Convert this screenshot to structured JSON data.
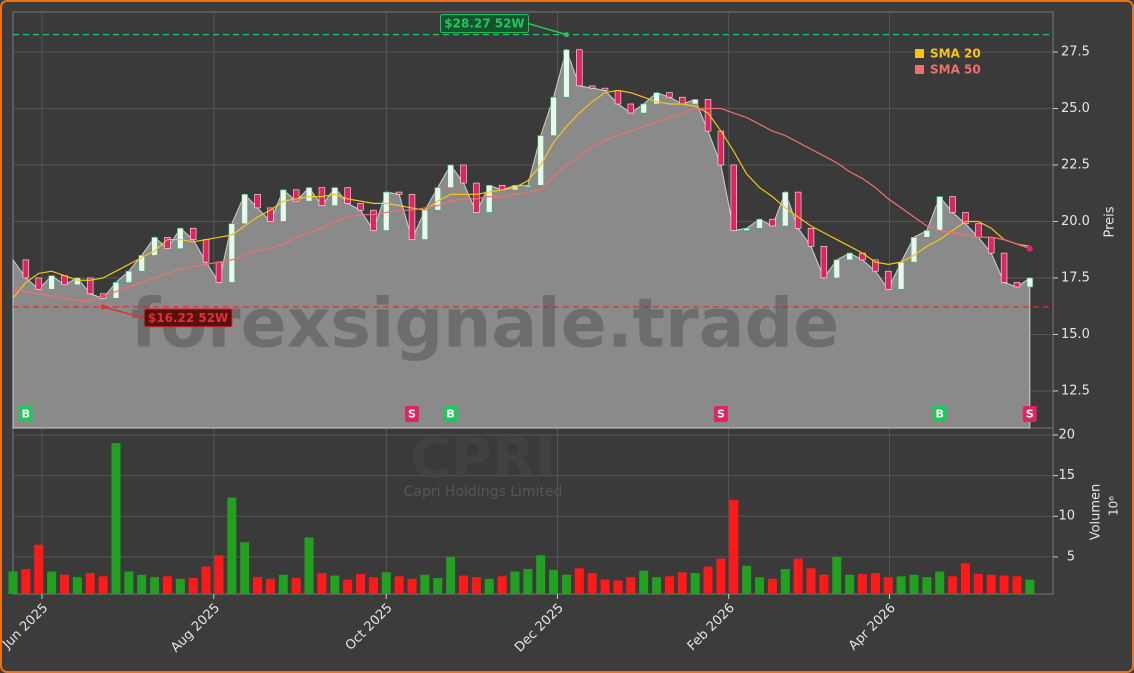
{
  "chart_data": {
    "type": "candlestick",
    "watermark": "forexsignale.trade",
    "symbol": "CPRI",
    "company": "Capri Holdings Limited",
    "ylabel": "Preis",
    "ylim": [
      10.86,
      29.27
    ],
    "yticks": [
      {
        "value": 12.5,
        "label": "12.5"
      },
      {
        "value": 15,
        "label": "15.0"
      },
      {
        "value": 17.5,
        "label": "17.5"
      },
      {
        "value": 20,
        "label": "20.0"
      },
      {
        "value": 22.5,
        "label": "22.5"
      },
      {
        "value": 25,
        "label": "25.0"
      },
      {
        "value": 27.5,
        "label": "27.5"
      }
    ],
    "xlim": [
      0,
      80.8
    ],
    "xticks": [
      {
        "value": 2.25,
        "label": "Jun 2025"
      },
      {
        "value": 15.6,
        "label": "Aug 2025"
      },
      {
        "value": 29.0,
        "label": "Oct 2025"
      },
      {
        "value": 42.3,
        "label": "Dec 2025"
      },
      {
        "value": 55.6,
        "label": "Feb 2026"
      },
      {
        "value": 68.1,
        "label": "Apr 2026"
      }
    ],
    "grid": true,
    "up_color": "#22c55e",
    "down_color": "#e0245e",
    "close": [
      18.3,
      17.5,
      17.0,
      17.6,
      17.2,
      17.5,
      16.8,
      16.6,
      17.3,
      17.8,
      18.5,
      19.3,
      18.8,
      19.7,
      19.2,
      18.2,
      17.3,
      19.9,
      21.2,
      20.6,
      20.0,
      21.4,
      20.9,
      21.5,
      20.7,
      21.5,
      20.8,
      20.5,
      19.6,
      21.3,
      21.2,
      19.2,
      20.5,
      21.5,
      22.5,
      21.7,
      20.4,
      21.6,
      21.4,
      21.6,
      21.6,
      23.8,
      25.5,
      27.6,
      26.0,
      25.9,
      25.8,
      25.2,
      24.8,
      25.2,
      25.7,
      25.5,
      25.2,
      25.4,
      24.0,
      22.5,
      19.6,
      19.7,
      20.1,
      19.8,
      21.3,
      19.7,
      18.9,
      17.5,
      18.3,
      18.6,
      18.3,
      17.8,
      17.0,
      18.2,
      19.3,
      19.6,
      21.1,
      20.4,
      19.9,
      19.3,
      18.6,
      17.3,
      17.1,
      17.5
    ],
    "sma": [
      {
        "name": "SMA 20",
        "color": "#f5c518",
        "values": [
          16.6,
          17.3,
          17.7,
          17.8,
          17.6,
          17.4,
          17.4,
          17.5,
          17.8,
          18.1,
          18.4,
          18.7,
          19.2,
          19.2,
          19.1,
          19.2,
          19.3,
          19.4,
          19.8,
          20.2,
          20.5,
          20.9,
          21.0,
          21.1,
          21.1,
          21.2,
          21.0,
          20.9,
          20.8,
          20.8,
          20.7,
          20.6,
          20.5,
          20.9,
          21.2,
          21.2,
          21.2,
          21.3,
          21.4,
          21.5,
          21.8,
          22.5,
          23.5,
          24.2,
          24.8,
          25.3,
          25.7,
          25.8,
          25.7,
          25.5,
          25.3,
          25.2,
          25.2,
          25.1,
          24.8,
          24.0,
          23.1,
          22.1,
          21.5,
          21.1,
          20.6,
          20.2,
          19.8,
          19.5,
          19.2,
          18.9,
          18.6,
          18.2,
          18.1,
          18.2,
          18.5,
          18.9,
          19.2,
          19.6,
          20.0,
          20.0,
          19.7,
          19.2,
          19.0,
          18.9
        ]
      },
      {
        "name": "SMA 50",
        "color": "#f07070",
        "values": [
          17.0,
          16.9,
          16.8,
          16.7,
          16.6,
          16.5,
          16.5,
          16.7,
          16.9,
          17.1,
          17.3,
          17.5,
          17.7,
          17.9,
          18.0,
          18.1,
          18.2,
          18.3,
          18.5,
          18.7,
          18.8,
          19.0,
          19.3,
          19.5,
          19.7,
          20.0,
          20.2,
          20.3,
          20.3,
          20.4,
          20.5,
          20.5,
          20.6,
          20.7,
          20.9,
          21.0,
          21.0,
          21.1,
          21.1,
          21.2,
          21.3,
          21.4,
          22.0,
          22.5,
          22.9,
          23.3,
          23.6,
          23.8,
          24.0,
          24.2,
          24.4,
          24.6,
          24.8,
          25.0,
          25.0,
          25.0,
          24.8,
          24.6,
          24.3,
          24.0,
          23.8,
          23.5,
          23.2,
          22.9,
          22.6,
          22.2,
          21.9,
          21.5,
          21.0,
          20.6,
          20.2,
          19.8,
          19.6,
          19.5,
          19.4,
          19.3,
          19.3,
          19.2,
          19.0,
          18.8
        ]
      }
    ],
    "high_52w": {
      "value": 28.27,
      "index": 43,
      "label": "$28.27 52W",
      "color": "#22c55e"
    },
    "low_52w": {
      "value": 16.22,
      "index": 7,
      "label": "$16.22 52W",
      "color": "#e03030"
    },
    "signals": [
      {
        "index": 1,
        "label": "B"
      },
      {
        "index": 31,
        "label": "S"
      },
      {
        "index": 34,
        "label": "B"
      },
      {
        "index": 55,
        "label": "S"
      },
      {
        "index": 72,
        "label": "B"
      },
      {
        "index": 79,
        "label": "S"
      }
    ],
    "volume": {
      "label": "Volumen",
      "exponent": "10⁶",
      "ylim": [
        0.43,
        20.86
      ],
      "yticks": [
        5,
        10,
        15,
        20
      ],
      "values": [
        3.2,
        3.5,
        6.5,
        3.2,
        2.8,
        2.5,
        3.0,
        2.6,
        19.0,
        3.2,
        2.8,
        2.5,
        2.6,
        2.3,
        2.4,
        3.8,
        5.2,
        12.3,
        6.8,
        2.5,
        2.3,
        2.8,
        2.4,
        7.4,
        3.0,
        2.7,
        2.2,
        2.9,
        2.5,
        3.1,
        2.6,
        2.3,
        2.8,
        2.4,
        5.0,
        2.7,
        2.5,
        2.3,
        2.6,
        3.2,
        3.5,
        5.2,
        3.4,
        2.8,
        3.6,
        3.0,
        2.2,
        2.1,
        2.5,
        3.3,
        2.5,
        2.6,
        3.1,
        3.0,
        3.8,
        4.8,
        12.0,
        3.9,
        2.5,
        2.3,
        3.5,
        4.8,
        3.6,
        2.8,
        5.0,
        2.8,
        2.9,
        3.0,
        2.5,
        2.6,
        2.8,
        2.5,
        3.2,
        2.6,
        4.2,
        2.9,
        2.8,
        2.7,
        2.6,
        2.2
      ]
    }
  }
}
